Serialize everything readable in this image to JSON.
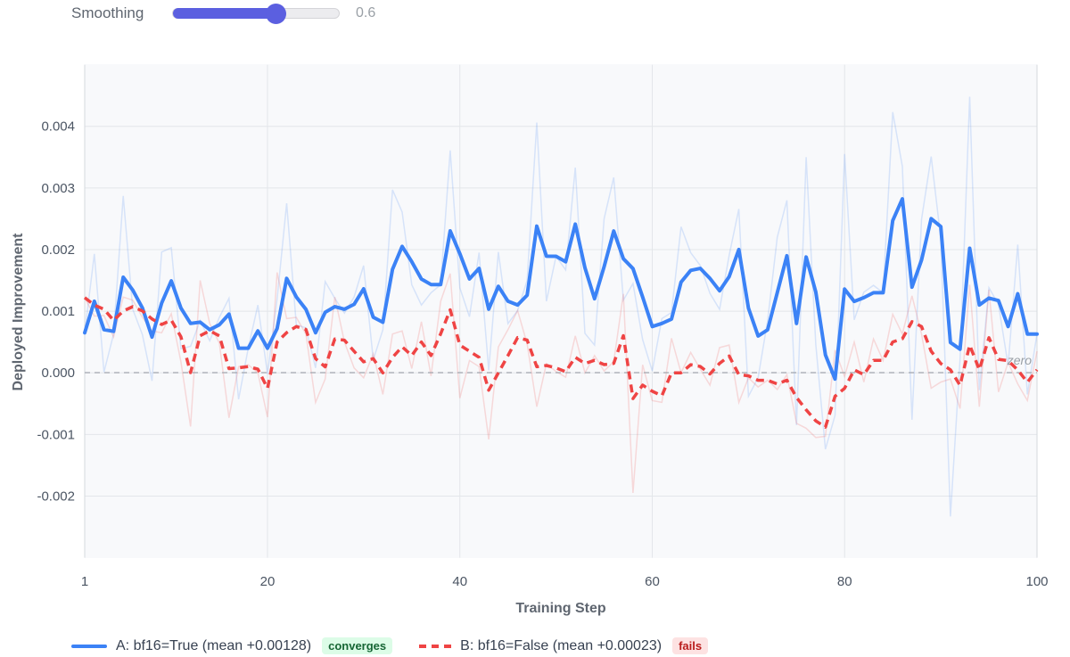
{
  "controls": {
    "smoothing_label": "Smoothing",
    "smoothing_value": 0.6,
    "smoothing_display": "0.6",
    "smoothing_max": 0.97
  },
  "chart_data": {
    "type": "line",
    "xlabel": "Training Step",
    "ylabel": "Deployed Improvement",
    "xlim": [
      1,
      100
    ],
    "ylim": [
      -0.003,
      0.005
    ],
    "x_ticks": [
      "1",
      "20",
      "40",
      "60",
      "80",
      "100"
    ],
    "y_ticks": [
      "0.004",
      "0.003",
      "0.002",
      "0.001",
      "0.000",
      "-0.001",
      "-0.002"
    ],
    "grid": true,
    "smoothing": 0.6,
    "reference_line": {
      "y": 0,
      "label": "zero"
    },
    "legend_position": "bottom",
    "series": [
      {
        "name": "A: bf16=True (mean +0.00128)",
        "badge": "converges",
        "color": "#3b82f6",
        "badge_bg": "#dcfce7",
        "badge_fg": "#166534",
        "style": "solid",
        "raw": [
          0.00065,
          0.00193,
          1e-05,
          0.00063,
          0.00287,
          0.00103,
          0.00062,
          -0.00013,
          0.00196,
          0.00203,
          0.00039,
          0.00043,
          0.00085,
          0.00052,
          0.0009,
          0.00121,
          -0.00043,
          0.0004,
          0.0011,
          -2e-05,
          0.0012,
          0.00275,
          0.00078,
          0.00073,
          8e-05,
          0.00148,
          0.00121,
          0.00097,
          0.00123,
          0.00174,
          0.00021,
          0.0007,
          0.00297,
          0.00261,
          0.00143,
          0.0011,
          0.0013,
          0.00143,
          0.00361,
          0.00138,
          0.00091,
          0.00195,
          4e-05,
          0.00196,
          0.0008,
          0.00101,
          0.0015,
          0.00406,
          0.00116,
          0.00189,
          0.00167,
          0.00333,
          0.00064,
          0.00045,
          0.0025,
          0.00317,
          0.00118,
          0.00145,
          0.00054,
          3e-05,
          0.00088,
          0.00098,
          0.00237,
          0.00195,
          0.00174,
          0.00129,
          0.00103,
          0.00191,
          0.00266,
          -0.00038,
          -8e-05,
          0.00085,
          0.0022,
          0.0028,
          -0.00085,
          0.0035,
          0.00046,
          -0.00124,
          -0.00069,
          0.00355,
          0.00086,
          0.00131,
          0.00142,
          0.0013,
          0.00423,
          0.00335,
          -0.00076,
          0.00249,
          0.00351,
          0.00218,
          -0.00233,
          0.00022,
          0.00448,
          -0.00028,
          0.00138,
          0.00111,
          0.00012,
          0.00208,
          -0.00035,
          0.00063
        ]
      },
      {
        "name": "B: bf16=False (mean +0.00023)",
        "badge": "fails",
        "color": "#ef4444",
        "badge_bg": "#fde2e2",
        "badge_fg": "#b91c1c",
        "style": "dashed",
        "raw": [
          0.00122,
          0.00092,
          0.00093,
          0.00058,
          0.00123,
          0.00118,
          0.0009,
          0.00068,
          0.00065,
          0.00096,
          0.00018,
          -0.00087,
          0.0015,
          0.0008,
          0.00048,
          -0.00073,
          0.0001,
          0.00013,
          0.0,
          -0.00072,
          0.00163,
          0.00088,
          0.0009,
          0.00063,
          -0.00048,
          -0.0001,
          0.00123,
          0.0005,
          8e-05,
          -8e-05,
          0.00031,
          -0.00035,
          0.00063,
          0.00068,
          7e-05,
          0.00083,
          -5e-05,
          0.00116,
          0.00161,
          -0.00041,
          0.0002,
          0.0001,
          -0.00108,
          0.00042,
          0.0007,
          0.00101,
          0.00047,
          -0.00055,
          0.00015,
          2e-05,
          -7e-05,
          0.0006,
          0.0,
          0.00028,
          3e-05,
          0.00018,
          0.00128,
          -0.00195,
          0.00013,
          -0.00045,
          -0.00048,
          0.00056,
          0.0,
          0.00033,
          6e-05,
          -0.0002,
          0.00041,
          0.00045,
          -0.00048,
          -8e-05,
          -0.00023,
          -0.00012,
          -0.00027,
          -3e-05,
          -0.00082,
          -0.0009,
          -0.00105,
          -0.00103,
          0.00037,
          -6e-05,
          0.0005,
          -0.00015,
          0.00055,
          0.0002,
          0.00095,
          0.00063,
          0.00125,
          0.00063,
          -0.00025,
          -0.00015,
          -0.0001,
          -0.00058,
          0.00143,
          -0.00055,
          0.00135,
          -0.00031,
          0.00017,
          -0.00018,
          -0.00045,
          0.00035
        ]
      }
    ]
  }
}
